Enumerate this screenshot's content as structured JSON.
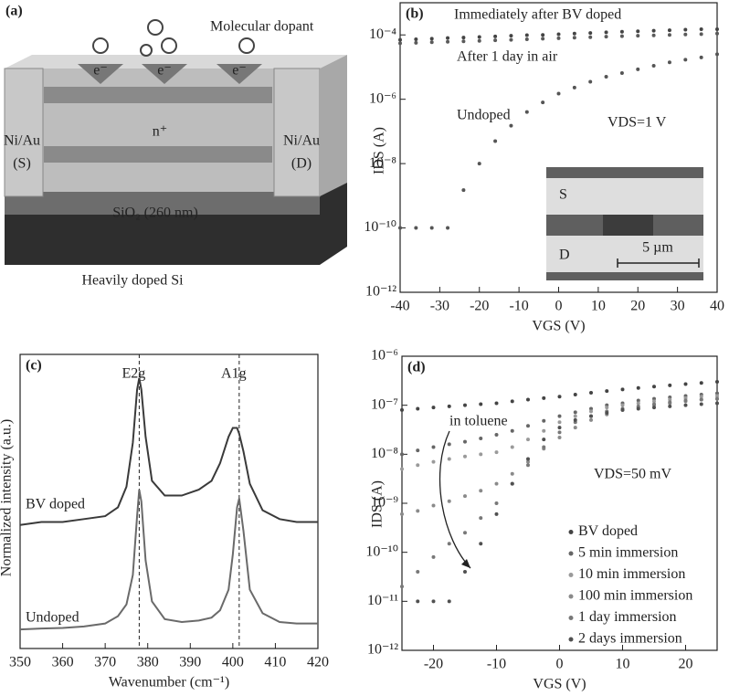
{
  "schematic": {
    "panel_label": "(a)",
    "dopant": "Molecular dopant",
    "electron": "e⁻",
    "channel": "n⁺",
    "source": [
      "Ni/Au",
      "(S)"
    ],
    "drain": [
      "Ni/Au",
      "(D)"
    ],
    "oxide": "SiO₂ (260 nm)",
    "substrate": "Heavily doped Si"
  },
  "chart_data": [
    {
      "type": "scatter",
      "panel_label": "(b)",
      "xlabel": "VGS (V)",
      "ylabel": "IDS (A)",
      "ylog": true,
      "xlim": [
        -40,
        40
      ],
      "xticks": [
        -40,
        -30,
        -20,
        -10,
        0,
        10,
        20,
        30,
        40
      ],
      "ylim": [
        1e-12,
        0.001
      ],
      "yticks": [
        {
          "value": 1e-12,
          "label": "10⁻¹²"
        },
        {
          "value": 1e-10,
          "label": "10⁻¹⁰"
        },
        {
          "value": 1e-08,
          "label": "10⁻⁸"
        },
        {
          "value": 1e-06,
          "label": "10⁻⁶"
        },
        {
          "value": 0.0001,
          "label": "10⁻⁴"
        }
      ],
      "x": [
        -40,
        -36,
        -32,
        -28,
        -24,
        -20,
        -16,
        -12,
        -8,
        -4,
        0,
        4,
        8,
        12,
        16,
        20,
        24,
        28,
        32,
        36,
        40
      ],
      "series": [
        {
          "name": "Immediately after BV doped",
          "color": "#444444",
          "values": [
            7e-05,
            7.3e-05,
            7.6e-05,
            8e-05,
            8.3e-05,
            8.6e-05,
            9e-05,
            9.4e-05,
            9.8e-05,
            0.0001,
            0.000105,
            0.00011,
            0.000115,
            0.00012,
            0.000125,
            0.00013,
            0.000135,
            0.00014,
            0.000145,
            0.00015,
            0.00015
          ]
        },
        {
          "name": "After 1 day in air",
          "color": "#5a5a5a",
          "values": [
            5.5e-05,
            5.7e-05,
            5.9e-05,
            6.1e-05,
            6.3e-05,
            6.5e-05,
            6.8e-05,
            7e-05,
            7.3e-05,
            7.6e-05,
            7.9e-05,
            8.2e-05,
            8.5e-05,
            8.8e-05,
            9.1e-05,
            9.4e-05,
            9.7e-05,
            0.0001,
            0.000103,
            0.000106,
            0.00011
          ]
        },
        {
          "name": "Undoped",
          "color": "#555555",
          "values": [
            1e-10,
            1e-10,
            1e-10,
            1e-10,
            1.5e-09,
            1e-08,
            5e-08,
            1.5e-07,
            4e-07,
            8e-07,
            1.5e-06,
            2.3e-06,
            3.5e-06,
            5e-06,
            6.5e-06,
            8.5e-06,
            1.1e-05,
            1.4e-05,
            1.7e-05,
            2e-05,
            2.5e-05
          ]
        }
      ],
      "annotations": [
        "VDS=1 V"
      ],
      "inset_labels": [
        "S",
        "D",
        "5 µm"
      ]
    },
    {
      "type": "line",
      "panel_label": "(c)",
      "xlabel": "Wavenumber (cm⁻¹)",
      "ylabel": "Normalized intensity (a.u.)",
      "xlim": [
        350,
        420
      ],
      "xticks": [
        350,
        360,
        370,
        380,
        390,
        400,
        410,
        420
      ],
      "ylim": [
        0,
        1
      ],
      "x": [
        350,
        355,
        360,
        365,
        370,
        373,
        375,
        376.5,
        377.5,
        378,
        378.5,
        379.5,
        381,
        384,
        388,
        392,
        395,
        397,
        399,
        400,
        401,
        401.5,
        402.5,
        404,
        407,
        411,
        415,
        420
      ],
      "series": [
        {
          "name": "BV doped",
          "color": "#3a3a3a",
          "values": [
            0.42,
            0.43,
            0.43,
            0.44,
            0.45,
            0.48,
            0.55,
            0.7,
            0.88,
            0.92,
            0.88,
            0.72,
            0.57,
            0.52,
            0.52,
            0.54,
            0.57,
            0.63,
            0.72,
            0.75,
            0.75,
            0.73,
            0.67,
            0.56,
            0.47,
            0.44,
            0.43,
            0.43
          ]
        },
        {
          "name": "Undoped",
          "color": "#6a6a6a",
          "values": [
            0.065,
            0.068,
            0.07,
            0.075,
            0.085,
            0.11,
            0.15,
            0.25,
            0.45,
            0.54,
            0.5,
            0.3,
            0.16,
            0.1,
            0.09,
            0.095,
            0.105,
            0.13,
            0.2,
            0.32,
            0.48,
            0.51,
            0.4,
            0.2,
            0.12,
            0.09,
            0.085,
            0.085
          ]
        }
      ],
      "peaks": [
        {
          "label": "E2g",
          "x": 378
        },
        {
          "label": "A1g",
          "x": 401.5
        }
      ]
    },
    {
      "type": "scatter",
      "panel_label": "(d)",
      "xlabel": "VGS (V)",
      "ylabel": "IDS (A)",
      "ylog": true,
      "xlim": [
        -25,
        25
      ],
      "xticks": [
        -20,
        -10,
        0,
        10,
        20
      ],
      "ylim": [
        1e-12,
        1e-06
      ],
      "yticks": [
        {
          "value": 1e-12,
          "label": "10⁻¹²"
        },
        {
          "value": 1e-11,
          "label": "10⁻¹¹"
        },
        {
          "value": 1e-10,
          "label": "10⁻¹⁰"
        },
        {
          "value": 1e-09,
          "label": "10⁻⁹"
        },
        {
          "value": 1e-08,
          "label": "10⁻⁸"
        },
        {
          "value": 1e-07,
          "label": "10⁻⁷"
        },
        {
          "value": 1e-06,
          "label": "10⁻⁶"
        }
      ],
      "x": [
        -25,
        -22.5,
        -20,
        -17.5,
        -15,
        -12.5,
        -10,
        -7.5,
        -5,
        -2.5,
        0,
        2.5,
        5,
        7.5,
        10,
        12.5,
        15,
        17.5,
        20,
        22.5,
        25
      ],
      "series": [
        {
          "name": "BV doped",
          "color": "#444444",
          "values": [
            8e-08,
            8.5e-08,
            9e-08,
            9.5e-08,
            1e-07,
            1.05e-07,
            1.1e-07,
            1.2e-07,
            1.3e-07,
            1.4e-07,
            1.5e-07,
            1.65e-07,
            1.8e-07,
            1.95e-07,
            2.1e-07,
            2.25e-07,
            2.4e-07,
            2.55e-07,
            2.7e-07,
            2.85e-07,
            3e-07
          ]
        },
        {
          "name": "5 min immersion",
          "color": "#666666",
          "values": [
            1e-08,
            1.2e-08,
            1.4e-08,
            1.6e-08,
            1.8e-08,
            2.1e-08,
            2.5e-08,
            3e-08,
            3.8e-08,
            4.8e-08,
            6e-08,
            7.2e-08,
            8.5e-08,
            1e-07,
            1.1e-07,
            1.25e-07,
            1.35e-07,
            1.45e-07,
            1.55e-07,
            1.65e-07,
            1.75e-07
          ]
        },
        {
          "name": "10 min immersion",
          "color": "#9a9a9a",
          "values": [
            5e-09,
            6e-09,
            7e-09,
            8e-09,
            9e-09,
            1e-08,
            1.1e-08,
            1.4e-08,
            2e-08,
            3e-08,
            4.5e-08,
            6e-08,
            7.5e-08,
            9e-08,
            1e-07,
            1.1e-07,
            1.2e-07,
            1.3e-07,
            1.4e-07,
            1.5e-07,
            1.55e-07
          ]
        },
        {
          "name": "100 min immersion",
          "color": "#8a8a8a",
          "values": [
            6e-10,
            7e-10,
            9e-10,
            1.1e-09,
            1.4e-09,
            1.8e-09,
            2.5e-09,
            4e-09,
            7e-09,
            1.3e-08,
            2.2e-08,
            3.5e-08,
            5e-08,
            6.5e-08,
            8e-08,
            9e-08,
            1e-07,
            1.1e-07,
            1.2e-07,
            1.3e-07,
            1.35e-07
          ]
        },
        {
          "name": "1 day immersion",
          "color": "#787878",
          "values": [
            2e-11,
            4e-11,
            8e-11,
            1.5e-10,
            2.5e-10,
            5e-10,
            1e-09,
            2.5e-09,
            6e-09,
            1.4e-08,
            2.8e-08,
            4.5e-08,
            6e-08,
            7.5e-08,
            8.5e-08,
            9.5e-08,
            1.05e-07,
            1.15e-07,
            1.25e-07,
            1.3e-07,
            1.35e-07
          ]
        },
        {
          "name": "2 days immersion",
          "color": "#505050",
          "values": [
            null,
            1e-11,
            1e-11,
            1e-11,
            4e-11,
            1.5e-10,
            6e-10,
            2.5e-09,
            8e-09,
            2e-08,
            3.5e-08,
            5e-08,
            6e-08,
            7e-08,
            8e-08,
            8.5e-08,
            9e-08,
            9.5e-08,
            1e-07,
            1.05e-07,
            1.1e-07
          ]
        }
      ],
      "legend": "lower right",
      "annotations": [
        "in toluene",
        "VDS=50 mV"
      ]
    }
  ]
}
